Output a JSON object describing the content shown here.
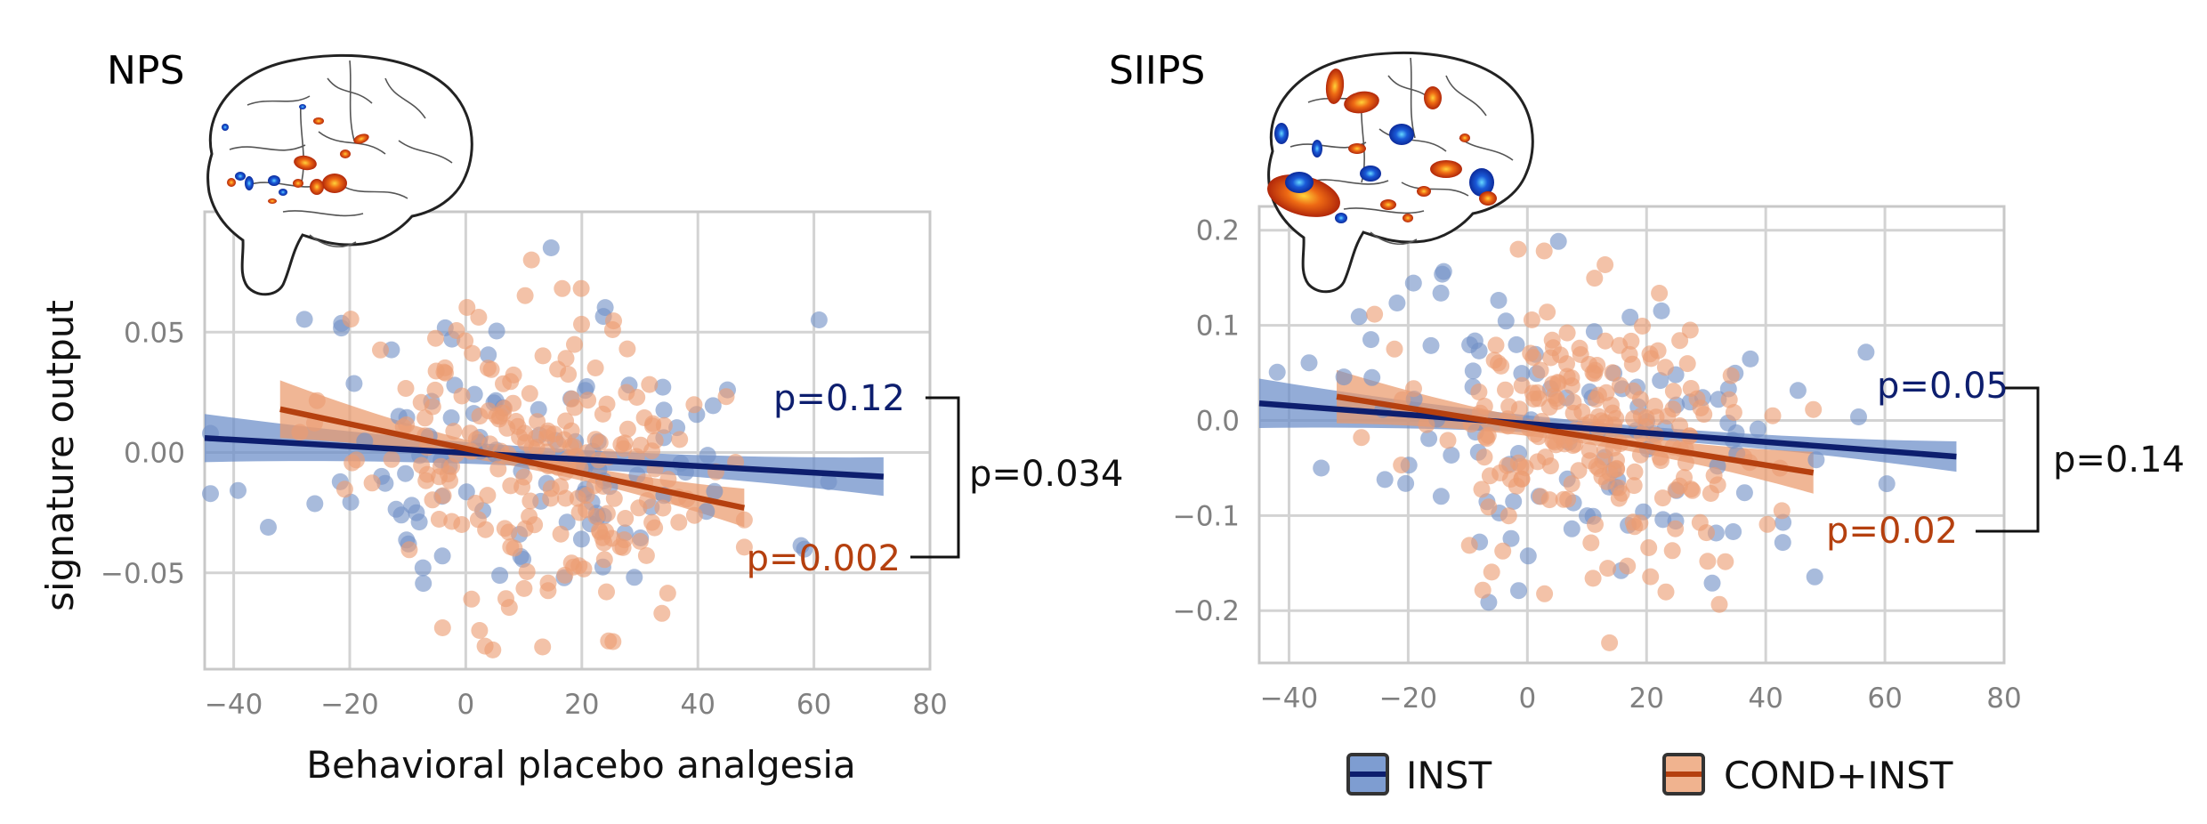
{
  "colors": {
    "inst_point": "#7391c6",
    "inst_line": "#0d1e6e",
    "inst_band": "#6a8cc8",
    "cond_point": "#ec9d73",
    "cond_line": "#b5400f",
    "cond_band": "#ea9a6c",
    "grid": "#d3d3d3",
    "spine": "#c8c8c8"
  },
  "chart_data": [
    {
      "type": "scatter",
      "title": "NPS",
      "xlabel": "Behavioral placebo analgesia",
      "ylabel": "signature output",
      "xlim": [
        -45,
        80
      ],
      "ylim": [
        -0.09,
        0.1
      ],
      "xticks": [
        -40,
        -20,
        0,
        20,
        40,
        60,
        80
      ],
      "xtick_labels": [
        "−40",
        "−20",
        "0",
        "20",
        "40",
        "60",
        "80"
      ],
      "yticks": [
        -0.05,
        0.0,
        0.05
      ],
      "ytick_labels": [
        "−0.05",
        "0.00",
        "0.05"
      ],
      "grid": true,
      "series": [
        {
          "name": "INST",
          "color": "inst",
          "fit": {
            "x": [
              -45,
              72
            ],
            "y": [
              0.006,
              -0.01
            ]
          },
          "ci_half_width": [
            0.01,
            0.004,
            0.008
          ],
          "annotation": "p=0.12",
          "points": {
            "seed": 11,
            "n": 110,
            "x_mean": 10,
            "x_sd": 22,
            "x_min": -44,
            "x_max": 72,
            "y_sd": 0.032,
            "y_min": -0.078,
            "y_max": 0.093
          }
        },
        {
          "name": "COND+INST",
          "color": "cond",
          "fit": {
            "x": [
              -32,
              48
            ],
            "y": [
              0.018,
              -0.023
            ]
          },
          "ci_half_width": [
            0.012,
            0.003,
            0.008
          ],
          "annotation": "p=0.002",
          "points": {
            "seed": 23,
            "n": 220,
            "x_mean": 12,
            "x_sd": 15,
            "x_min": -32,
            "x_max": 48,
            "y_sd": 0.03,
            "y_min": -0.082,
            "y_max": 0.08
          }
        }
      ],
      "comparison": "p=0.034",
      "inset": "brain_nps"
    },
    {
      "type": "scatter",
      "title": "SIIPS",
      "xlabel": "",
      "ylabel": "",
      "xlim": [
        -45,
        80
      ],
      "ylim": [
        -0.255,
        0.225
      ],
      "xticks": [
        -40,
        -20,
        0,
        20,
        40,
        60,
        80
      ],
      "xtick_labels": [
        "−40",
        "−20",
        "0",
        "20",
        "40",
        "60",
        "80"
      ],
      "yticks": [
        -0.2,
        -0.1,
        0.0,
        0.1,
        0.2
      ],
      "ytick_labels": [
        "−0.2",
        "−0.1",
        "0.0",
        "0.1",
        "0.2"
      ],
      "grid": true,
      "series": [
        {
          "name": "INST",
          "color": "inst",
          "fit": {
            "x": [
              -45,
              72
            ],
            "y": [
              0.018,
              -0.038
            ]
          },
          "ci_half_width": [
            0.026,
            0.007,
            0.016
          ],
          "annotation": "p=0.05",
          "points": {
            "seed": 37,
            "n": 110,
            "x_mean": 10,
            "x_sd": 22,
            "x_min": -44,
            "x_max": 72,
            "y_sd": 0.08,
            "y_min": -0.2,
            "y_max": 0.2
          }
        },
        {
          "name": "COND+INST",
          "color": "cond",
          "fit": {
            "x": [
              -32,
              48
            ],
            "y": [
              0.025,
              -0.055
            ]
          },
          "ci_half_width": [
            0.028,
            0.008,
            0.022
          ],
          "annotation": "p=0.02",
          "points": {
            "seed": 53,
            "n": 220,
            "x_mean": 12,
            "x_sd": 15,
            "x_min": -32,
            "x_max": 48,
            "y_sd": 0.075,
            "y_min": -0.235,
            "y_max": 0.18
          }
        }
      ],
      "comparison": "p=0.14",
      "inset": "brain_siips"
    }
  ],
  "legend": {
    "placement": "bottom-right",
    "items": [
      {
        "label": "INST",
        "color": "inst"
      },
      {
        "label": "COND+INST",
        "color": "cond"
      }
    ]
  }
}
